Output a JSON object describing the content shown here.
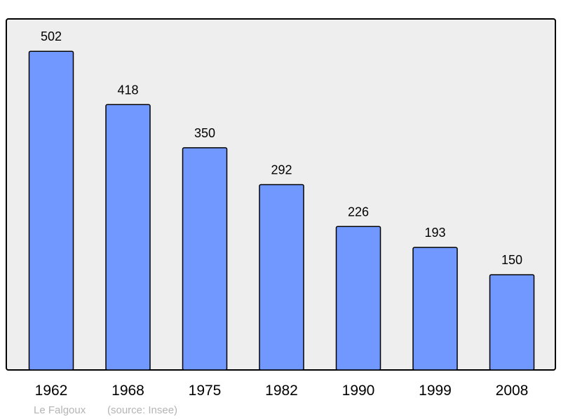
{
  "chart_data": {
    "type": "bar",
    "categories": [
      "1962",
      "1968",
      "1975",
      "1982",
      "1990",
      "1999",
      "2008"
    ],
    "values": [
      502,
      418,
      350,
      292,
      226,
      193,
      150
    ],
    "title": "",
    "xlabel": "",
    "ylabel": "",
    "ylim": [
      0,
      553
    ],
    "grid": false,
    "data_labels": true,
    "colors": {
      "bar": "#7098ff",
      "plot_background": "#eeeeee",
      "border": "#000000"
    }
  },
  "footer": {
    "place": "Le Falgoux",
    "source": "(source: Insee)"
  }
}
